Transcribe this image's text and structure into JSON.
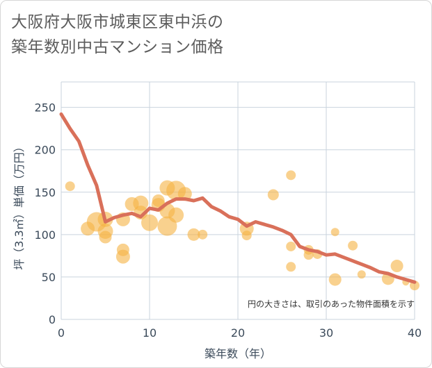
{
  "title_line1": "大阪府大阪市城東区東中浜の",
  "title_line2": "築年数別中古マンション価格",
  "chart_data": {
    "type": "scatter",
    "xlabel": "築年数（年）",
    "ylabel": "坪（3.3㎡）単価（万円）",
    "xlim": [
      0,
      40
    ],
    "ylim": [
      0,
      280
    ],
    "xticks": [
      "0",
      "10",
      "20",
      "30",
      "40"
    ],
    "yticks": [
      "0",
      "50",
      "100",
      "150",
      "200",
      "250"
    ],
    "note": "円の大きさは、取引のあった物件面積を示す",
    "colors": {
      "bubble": "#f5b342",
      "line": "#d9705a",
      "grid": "#c9d3de"
    },
    "points": [
      {
        "x": 1,
        "y": 157,
        "s": 7
      },
      {
        "x": 3,
        "y": 107,
        "s": 10
      },
      {
        "x": 4,
        "y": 115,
        "s": 14
      },
      {
        "x": 5,
        "y": 118,
        "s": 11
      },
      {
        "x": 5,
        "y": 104,
        "s": 11
      },
      {
        "x": 5,
        "y": 97,
        "s": 9
      },
      {
        "x": 7,
        "y": 118,
        "s": 10
      },
      {
        "x": 7,
        "y": 82,
        "s": 9
      },
      {
        "x": 7,
        "y": 74,
        "s": 10
      },
      {
        "x": 8,
        "y": 136,
        "s": 10
      },
      {
        "x": 9,
        "y": 137,
        "s": 11
      },
      {
        "x": 9,
        "y": 126,
        "s": 10
      },
      {
        "x": 10,
        "y": 114,
        "s": 12
      },
      {
        "x": 11,
        "y": 140,
        "s": 9
      },
      {
        "x": 11,
        "y": 135,
        "s": 10
      },
      {
        "x": 12,
        "y": 155,
        "s": 11
      },
      {
        "x": 12,
        "y": 128,
        "s": 11
      },
      {
        "x": 12,
        "y": 110,
        "s": 14
      },
      {
        "x": 13,
        "y": 152,
        "s": 14
      },
      {
        "x": 13,
        "y": 123,
        "s": 11
      },
      {
        "x": 14,
        "y": 148,
        "s": 10
      },
      {
        "x": 15,
        "y": 100,
        "s": 9
      },
      {
        "x": 16,
        "y": 100,
        "s": 7
      },
      {
        "x": 21,
        "y": 107,
        "s": 10
      },
      {
        "x": 21,
        "y": 99,
        "s": 7
      },
      {
        "x": 24,
        "y": 147,
        "s": 8
      },
      {
        "x": 26,
        "y": 170,
        "s": 7
      },
      {
        "x": 26,
        "y": 86,
        "s": 7
      },
      {
        "x": 26,
        "y": 62,
        "s": 7
      },
      {
        "x": 28,
        "y": 82,
        "s": 7
      },
      {
        "x": 28,
        "y": 76,
        "s": 7
      },
      {
        "x": 29,
        "y": 77,
        "s": 7
      },
      {
        "x": 31,
        "y": 103,
        "s": 6
      },
      {
        "x": 31,
        "y": 47,
        "s": 9
      },
      {
        "x": 33,
        "y": 87,
        "s": 7
      },
      {
        "x": 34,
        "y": 53,
        "s": 6
      },
      {
        "x": 37,
        "y": 48,
        "s": 9
      },
      {
        "x": 38,
        "y": 63,
        "s": 9
      },
      {
        "x": 39,
        "y": 44,
        "s": 5
      },
      {
        "x": 40,
        "y": 40,
        "s": 7
      }
    ],
    "line": {
      "x": [
        0,
        1,
        2,
        3,
        4,
        5,
        6,
        7,
        8,
        9,
        10,
        11,
        12,
        13,
        14,
        15,
        16,
        17,
        18,
        19,
        20,
        21,
        22,
        23,
        24,
        25,
        26,
        27,
        28,
        29,
        30,
        31,
        32,
        33,
        34,
        35,
        36,
        37,
        38,
        39,
        40
      ],
      "y": [
        242,
        225,
        210,
        182,
        158,
        115,
        120,
        123,
        125,
        121,
        131,
        129,
        137,
        142,
        142,
        140,
        143,
        133,
        128,
        121,
        118,
        110,
        115,
        112,
        109,
        105,
        100,
        86,
        82,
        80,
        76,
        77,
        73,
        69,
        65,
        61,
        56,
        54,
        50,
        47,
        44
      ]
    }
  }
}
